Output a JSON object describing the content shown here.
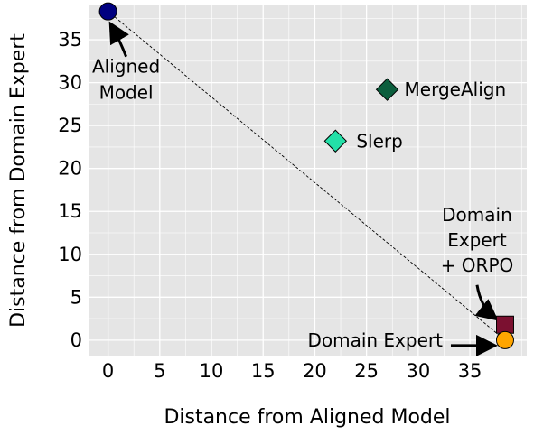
{
  "chart_data": {
    "type": "scatter",
    "xlabel": "Distance from Aligned Model",
    "ylabel": "Distance from Domain Expert",
    "xlim": [
      -1.8,
      40.5
    ],
    "ylim": [
      -1.8,
      39.0
    ],
    "x_ticks": [
      0,
      5,
      10,
      15,
      20,
      25,
      30,
      35
    ],
    "y_ticks": [
      0,
      5,
      10,
      15,
      20,
      25,
      30,
      35
    ],
    "grid": true,
    "background": "#e5e5e5",
    "points": [
      {
        "label_lines": [
          "Aligned",
          "Model"
        ],
        "x": 0.0,
        "y": 38.3,
        "marker": "circle",
        "color": "#000080"
      },
      {
        "label_lines": [
          "MergeAlign"
        ],
        "x": 27.0,
        "y": 29.2,
        "marker": "diamond",
        "color": "#0b5e3d"
      },
      {
        "label_lines": [
          "Slerp"
        ],
        "x": 22.0,
        "y": 23.2,
        "marker": "diamond",
        "color": "#24e0a8"
      },
      {
        "label_lines": [
          "Domain",
          "Expert",
          "+ ORPO"
        ],
        "x": 38.4,
        "y": 1.8,
        "marker": "square",
        "color": "#7b1030"
      },
      {
        "label_lines": [
          "Domain Expert"
        ],
        "x": 38.4,
        "y": 0.0,
        "marker": "circle",
        "color": "#ffa500"
      }
    ],
    "reference_line": {
      "from": [
        0.0,
        38.3
      ],
      "to": [
        38.4,
        0.0
      ],
      "style": "dashed"
    }
  }
}
